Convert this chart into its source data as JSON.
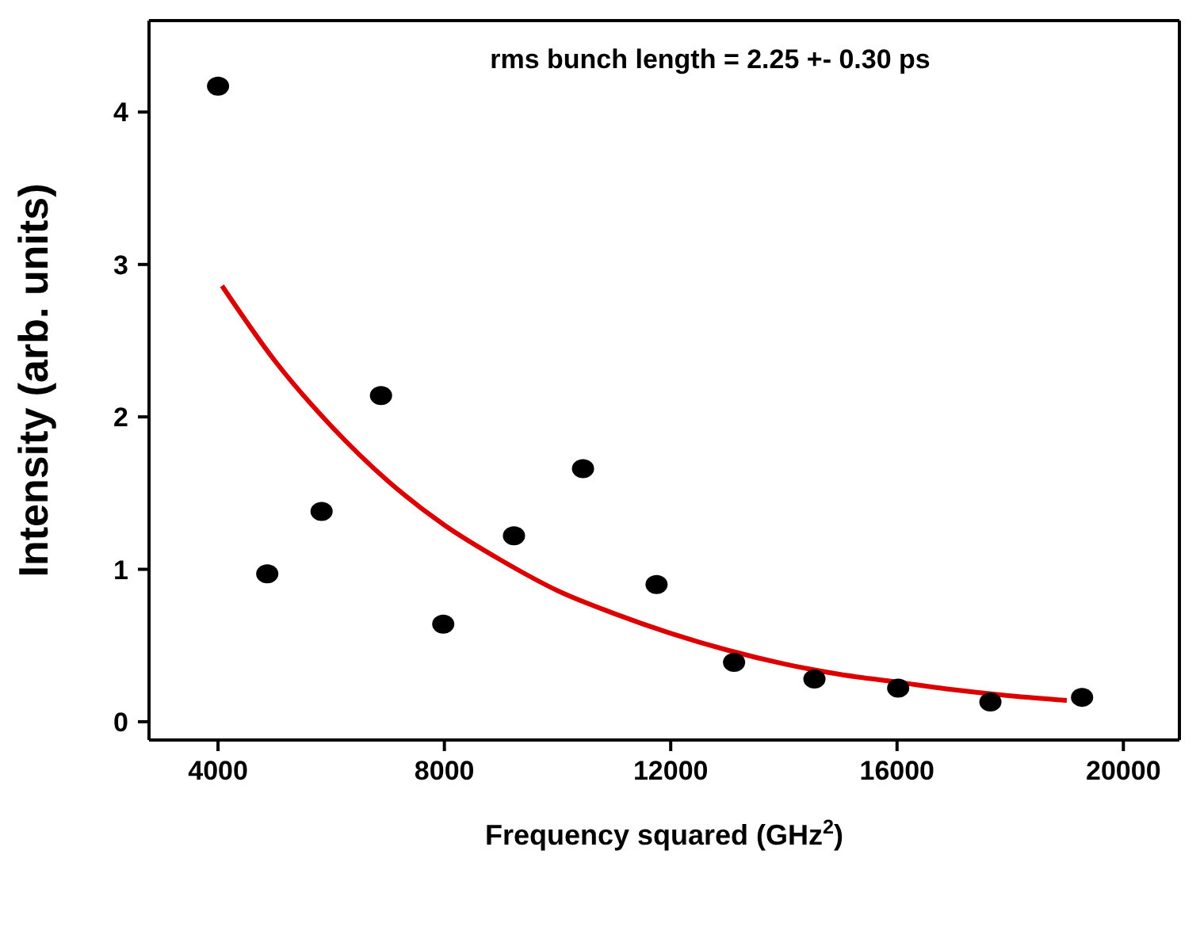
{
  "chart_data": {
    "type": "scatter",
    "xlabel": "Frequency squared (GHz$^{2}$)",
    "ylabel": "Intensity (arb. units)",
    "annotations": [
      "rms bunch length = 2.25 +- 0.30 ps"
    ],
    "xlim": [
      2780,
      20990
    ],
    "xticks": [
      4000,
      8000,
      12000,
      16000,
      20000
    ],
    "ylim": [
      -0.12,
      4.6
    ],
    "yticks": [
      0,
      1,
      2,
      3,
      4
    ],
    "series": [
      {
        "marker": "circle",
        "color": "#000000",
        "x": [
          4000,
          4870,
          5830,
          6880,
          7980,
          9230,
          10450,
          11750,
          13120,
          14540,
          16020,
          17650,
          19270
        ],
        "values": [
          4.17,
          0.97,
          1.38,
          2.14,
          0.64,
          1.22,
          1.66,
          0.9,
          0.39,
          0.28,
          0.22,
          0.13,
          0.16
        ]
      },
      {
        "type": "line",
        "marker": "none",
        "color": "#dd0000",
        "x": [
          4070,
          5000,
          6000,
          7000,
          8000,
          9000,
          10000,
          11000,
          12000,
          13000,
          14000,
          15000,
          16000,
          17000,
          18000,
          19000
        ],
        "values": [
          2.86,
          2.37,
          1.94,
          1.58,
          1.29,
          1.06,
          0.86,
          0.71,
          0.58,
          0.47,
          0.38,
          0.31,
          0.26,
          0.21,
          0.17,
          0.14
        ]
      }
    ]
  }
}
